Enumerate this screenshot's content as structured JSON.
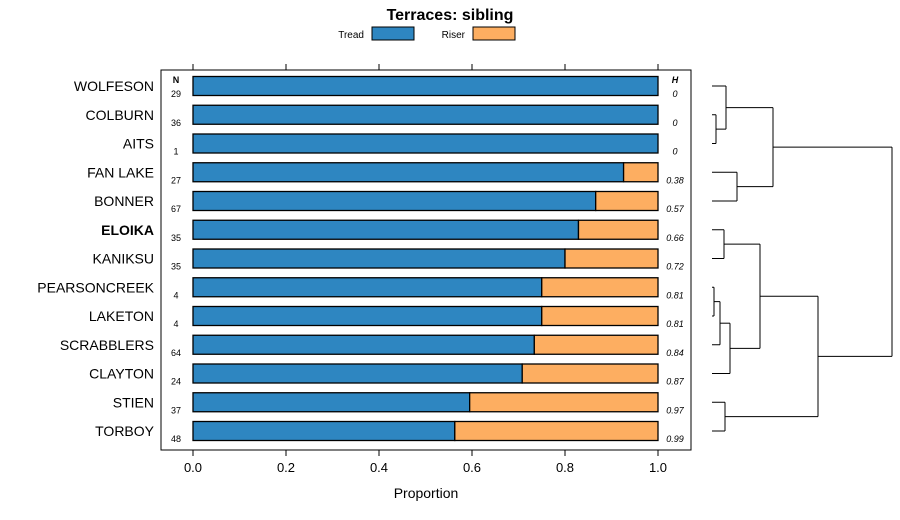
{
  "chart_data": {
    "type": "bar",
    "stacked": true,
    "orientation": "horizontal",
    "title": "Terraces: sibling",
    "xlabel": "Proportion",
    "ylabel": "",
    "xlim": [
      0,
      1
    ],
    "xticks": [
      "0.0",
      "0.2",
      "0.4",
      "0.6",
      "0.8",
      "1.0"
    ],
    "grid": false,
    "legend": {
      "position": "top",
      "entries": [
        {
          "name": "Tread",
          "color": "#2e86c1"
        },
        {
          "name": "Riser",
          "color": "#fdae61"
        }
      ]
    },
    "n_header": "N",
    "h_header": "H",
    "categories": [
      "WOLFESON",
      "COLBURN",
      "AITS",
      "FAN LAKE",
      "BONNER",
      "ELOIKA",
      "KANIKSU",
      "PEARSONCREEK",
      "LAKETON",
      "SCRABBLERS",
      "CLAYTON",
      "STIEN",
      "TORBOY"
    ],
    "highlighted": "ELOIKA",
    "n_values": [
      "29",
      "36",
      "1",
      "27",
      "67",
      "35",
      "35",
      "4",
      "4",
      "64",
      "24",
      "37",
      "48"
    ],
    "h_values": [
      "0",
      "0",
      "0",
      "0.38",
      "0.57",
      "0.66",
      "0.72",
      "0.81",
      "0.81",
      "0.84",
      "0.87",
      "0.97",
      "0.99"
    ],
    "series": [
      {
        "name": "Tread",
        "values": [
          1.0,
          1.0,
          1.0,
          0.926,
          0.866,
          0.829,
          0.8,
          0.75,
          0.75,
          0.734,
          0.708,
          0.595,
          0.563
        ]
      },
      {
        "name": "Riser",
        "values": [
          0.0,
          0.0,
          0.0,
          0.074,
          0.134,
          0.171,
          0.2,
          0.25,
          0.25,
          0.266,
          0.292,
          0.405,
          0.437
        ]
      }
    ],
    "dendrogram": {
      "description": "hierarchical clustering tree of the rows, drawn to the right",
      "merges": [
        [
          "COLBURN",
          "AITS"
        ],
        [
          "WOLFESON",
          "COLBURN+AITS"
        ],
        [
          "FAN LAKE",
          "BONNER"
        ],
        [
          "ELOIKA",
          "KANIKSU"
        ],
        [
          "PEARSONCREEK",
          "LAKETON"
        ],
        [
          "PL",
          "SCRABBLERS"
        ],
        [
          "PLS",
          "CLAYTON"
        ],
        [
          "PLSC",
          "ELOIKA+KANIKSU"
        ],
        [
          "STIEN",
          "TORBOY"
        ],
        [
          "EKPLSC",
          "STIEN+TORBOY"
        ],
        [
          "TOP1",
          "TOP2"
        ]
      ]
    }
  }
}
